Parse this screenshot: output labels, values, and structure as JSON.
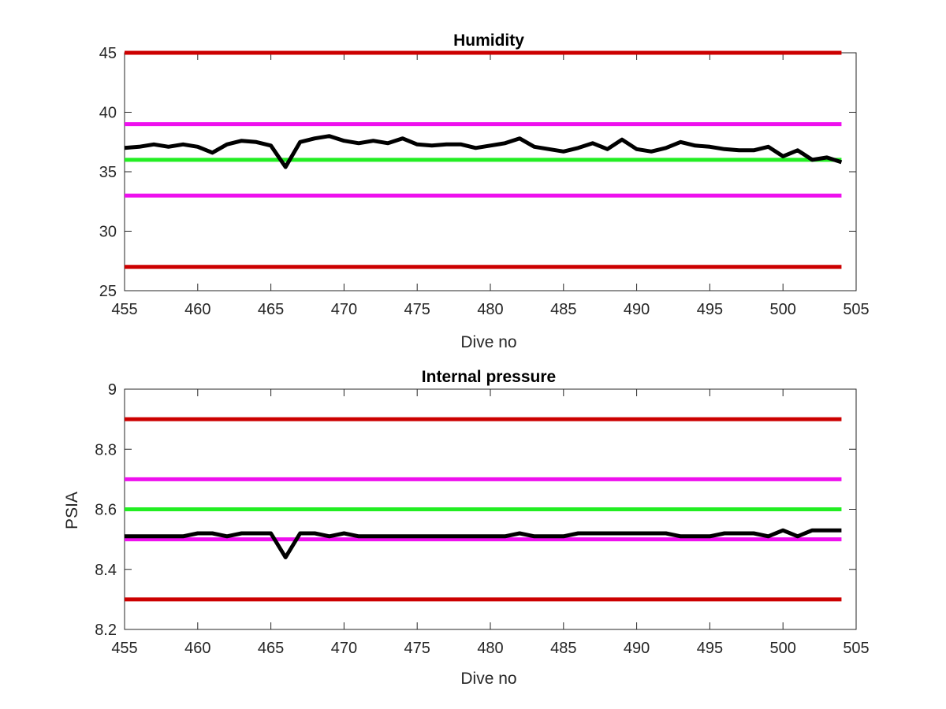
{
  "figure": {
    "background": "#ffffff"
  },
  "chart_data": [
    {
      "type": "line",
      "title": "Humidity",
      "xlabel": "Dive no",
      "ylabel": "",
      "xlim": [
        455,
        505
      ],
      "ylim": [
        25,
        45
      ],
      "xticks": [
        455,
        460,
        465,
        470,
        475,
        480,
        485,
        490,
        495,
        500,
        505
      ],
      "yticks": [
        25,
        30,
        35,
        40,
        45
      ],
      "grid": false,
      "reference_lines": [
        {
          "y": 45,
          "color": "#cc0000"
        },
        {
          "y": 39,
          "color": "#ee10ee"
        },
        {
          "y": 36,
          "color": "#22ee22"
        },
        {
          "y": 33,
          "color": "#ee10ee"
        },
        {
          "y": 27,
          "color": "#cc0000"
        }
      ],
      "series": [
        {
          "color": "#000000",
          "x": [
            455,
            456,
            457,
            458,
            459,
            460,
            461,
            462,
            463,
            464,
            465,
            466,
            467,
            468,
            469,
            470,
            471,
            472,
            473,
            474,
            475,
            476,
            477,
            478,
            479,
            480,
            481,
            482,
            483,
            484,
            485,
            486,
            487,
            488,
            489,
            490,
            491,
            492,
            493,
            494,
            495,
            496,
            497,
            498,
            499,
            500,
            501,
            502,
            503,
            504
          ],
          "values": [
            37.0,
            37.1,
            37.3,
            37.1,
            37.3,
            37.1,
            36.6,
            37.3,
            37.6,
            37.5,
            37.2,
            35.4,
            37.5,
            37.8,
            38.0,
            37.6,
            37.4,
            37.6,
            37.4,
            37.8,
            37.3,
            37.2,
            37.3,
            37.3,
            37.0,
            37.2,
            37.4,
            37.8,
            37.1,
            36.9,
            36.7,
            37.0,
            37.4,
            36.9,
            37.7,
            36.9,
            36.7,
            37.0,
            37.5,
            37.2,
            37.1,
            36.9,
            36.8,
            36.8,
            37.1,
            36.3,
            36.8,
            36.0,
            36.2,
            35.8
          ]
        }
      ]
    },
    {
      "type": "line",
      "title": "Internal pressure",
      "xlabel": "Dive no",
      "ylabel": "PSIA",
      "xlim": [
        455,
        505
      ],
      "ylim": [
        8.2,
        9
      ],
      "xticks": [
        455,
        460,
        465,
        470,
        475,
        480,
        485,
        490,
        495,
        500,
        505
      ],
      "yticks": [
        8.2,
        8.4,
        8.6,
        8.8,
        9
      ],
      "ytick_labels": [
        "8.2",
        "8.4",
        "8.6",
        "8.8",
        "9"
      ],
      "grid": false,
      "reference_lines": [
        {
          "y": 8.9,
          "color": "#cc0000"
        },
        {
          "y": 8.7,
          "color": "#ee10ee"
        },
        {
          "y": 8.6,
          "color": "#22ee22"
        },
        {
          "y": 8.5,
          "color": "#ee10ee"
        },
        {
          "y": 8.3,
          "color": "#cc0000"
        }
      ],
      "series": [
        {
          "color": "#000000",
          "x": [
            455,
            456,
            457,
            458,
            459,
            460,
            461,
            462,
            463,
            464,
            465,
            466,
            467,
            468,
            469,
            470,
            471,
            472,
            473,
            474,
            475,
            476,
            477,
            478,
            479,
            480,
            481,
            482,
            483,
            484,
            485,
            486,
            487,
            488,
            489,
            490,
            491,
            492,
            493,
            494,
            495,
            496,
            497,
            498,
            499,
            500,
            501,
            502,
            503,
            504
          ],
          "values": [
            8.51,
            8.51,
            8.51,
            8.51,
            8.51,
            8.52,
            8.52,
            8.51,
            8.52,
            8.52,
            8.52,
            8.44,
            8.52,
            8.52,
            8.51,
            8.52,
            8.51,
            8.51,
            8.51,
            8.51,
            8.51,
            8.51,
            8.51,
            8.51,
            8.51,
            8.51,
            8.51,
            8.52,
            8.51,
            8.51,
            8.51,
            8.52,
            8.52,
            8.52,
            8.52,
            8.52,
            8.52,
            8.52,
            8.51,
            8.51,
            8.51,
            8.52,
            8.52,
            8.52,
            8.51,
            8.53,
            8.51,
            8.53,
            8.53,
            8.53
          ]
        }
      ]
    }
  ]
}
